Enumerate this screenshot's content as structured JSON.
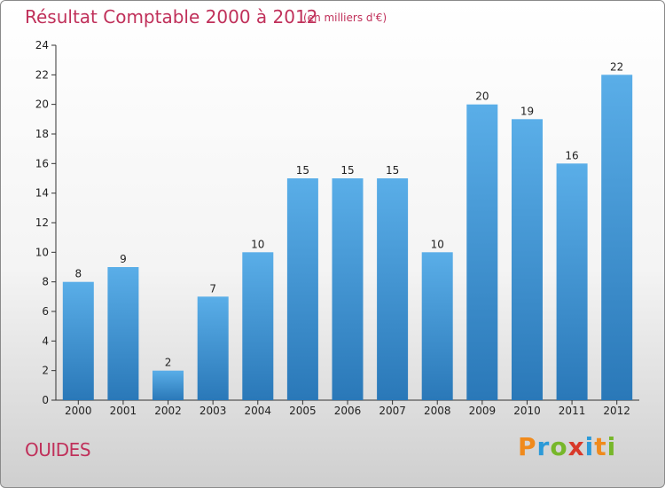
{
  "header": {
    "title": "Résultat Comptable 2000 à 2012",
    "subtitle": "(en milliers d'€)"
  },
  "footer": {
    "commune": "OUIDES",
    "logo": "Proxiti"
  },
  "colors": {
    "title": "#c0305a",
    "bar_top": "#5aaee8",
    "bar_bottom": "#2a78b8"
  },
  "chart_data": {
    "type": "bar",
    "title": "Résultat Comptable 2000 à 2012",
    "subtitle": "(en milliers d'€)",
    "xlabel": "",
    "ylabel": "",
    "categories": [
      "2000",
      "2001",
      "2002",
      "2003",
      "2004",
      "2005",
      "2006",
      "2007",
      "2008",
      "2009",
      "2010",
      "2011",
      "2012"
    ],
    "values": [
      8,
      9,
      2,
      7,
      10,
      15,
      15,
      15,
      10,
      20,
      19,
      16,
      22
    ],
    "ylim": [
      0,
      24
    ],
    "yticks": [
      0,
      2,
      4,
      6,
      8,
      10,
      12,
      14,
      16,
      18,
      20,
      22,
      24
    ],
    "grid": false,
    "legend": "none"
  }
}
